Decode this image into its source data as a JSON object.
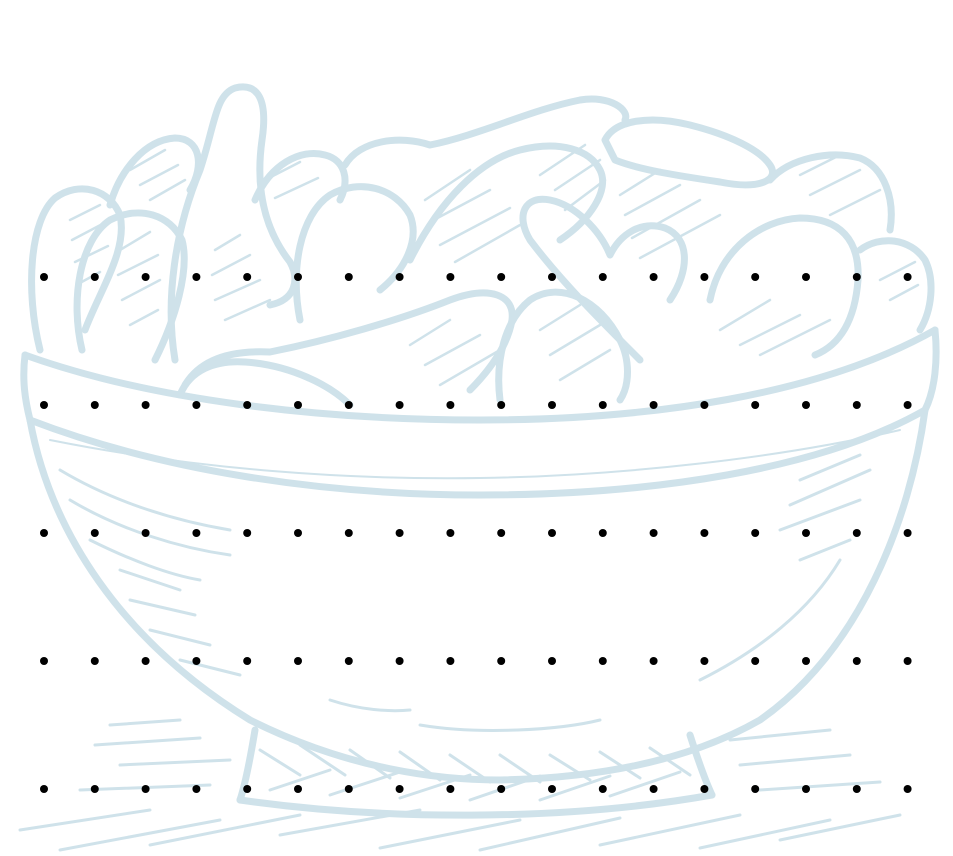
{
  "illustration": {
    "subject": "bowl-of-potatoes",
    "line_color": "#cfe2ea",
    "background": "#ffffff"
  },
  "dot_grid": {
    "rows": 5,
    "columns": 18,
    "dot_color": "#000000"
  }
}
